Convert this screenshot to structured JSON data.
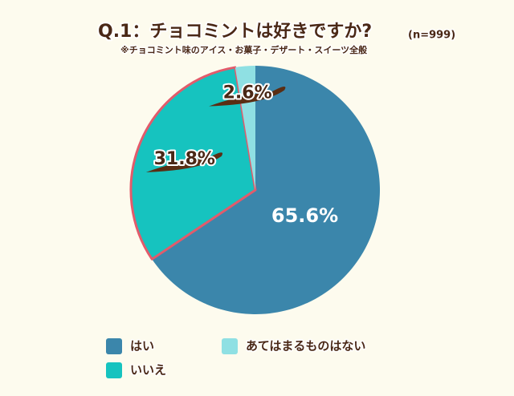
{
  "chart_data": {
    "type": "pie",
    "title": "Q.1：チョコミントは好きですか?",
    "sample": "(n=999)",
    "subtitle": "※チョコミント味のアイス・お菓子・デザート・スイーツ全般",
    "categories": [
      "はい",
      "いいえ",
      "あてはまるものはない"
    ],
    "values": [
      65.6,
      31.8,
      2.6
    ],
    "value_labels": [
      "65.6%",
      "31.8%",
      "2.6%"
    ],
    "colors": [
      "#3b86ab",
      "#16c3bf",
      "#8fe0e3"
    ]
  }
}
